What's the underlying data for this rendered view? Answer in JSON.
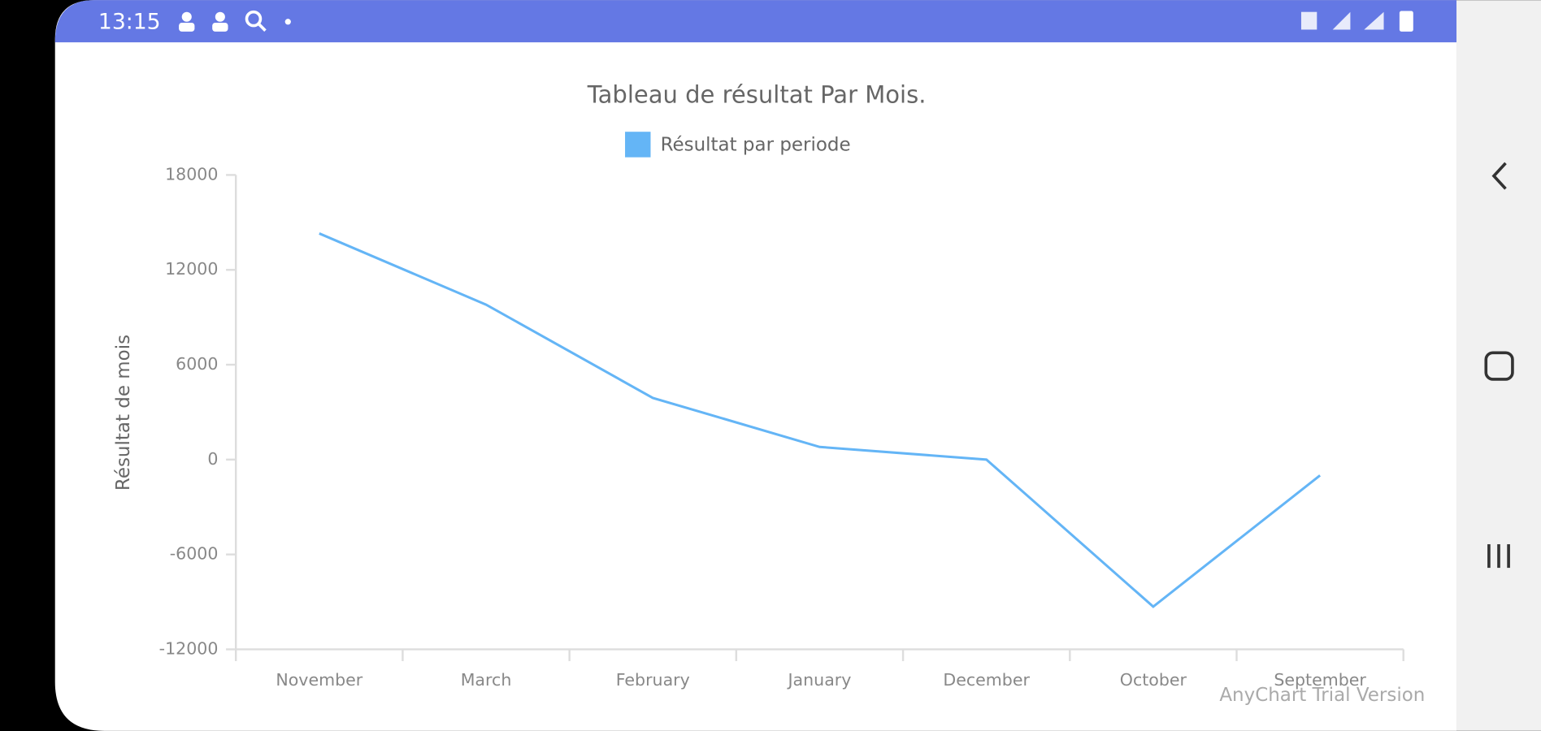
{
  "status_bar": {
    "time": "13:15"
  },
  "chart_data": {
    "type": "line",
    "title": "Tableau de résultat Par Mois.",
    "y_label": "Résultat de mois",
    "categories": [
      "November",
      "March",
      "February",
      "January",
      "December",
      "October",
      "September"
    ],
    "series": [
      {
        "name": "Résultat par periode",
        "color": "#64b5f6",
        "values": [
          14300,
          9800,
          3900,
          800,
          0,
          -9300,
          -1000
        ]
      }
    ],
    "ylim": [
      -12000,
      18000
    ],
    "yticks": [
      -12000,
      -6000,
      0,
      6000,
      12000,
      18000
    ],
    "grid": false,
    "legend": "top",
    "credits": "AnyChart Trial Version"
  }
}
